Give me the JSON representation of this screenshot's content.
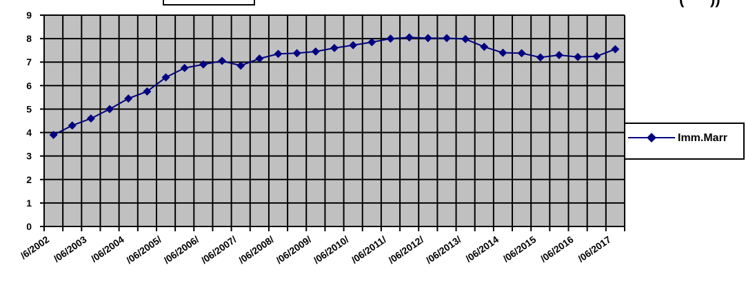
{
  "chart_data": {
    "type": "line",
    "title": "",
    "xlabel": "",
    "ylabel": "",
    "ylim": [
      0,
      9
    ],
    "yticks": [
      "0",
      "1",
      "2",
      "3",
      "4",
      "5",
      "6",
      "7",
      "8",
      "9"
    ],
    "grid": true,
    "legend_position": "right",
    "x_tick_labels": [
      "/6/2002",
      "/06/2003",
      "/06/2004",
      "/06/2005/",
      "/06/2006/",
      "/06/2007/",
      "/06/2008/",
      "/06/2009/",
      "/06/2010/",
      "/06/2011/",
      "/06/2012/",
      "/06/2013/",
      "/06/2014",
      "/06/2015",
      "/06/2016",
      "/06/2017"
    ],
    "series": [
      {
        "name": "Imm.Marr",
        "color": "#000080",
        "marker": "diamond",
        "values": [
          3.9,
          4.3,
          4.6,
          5.0,
          5.45,
          5.75,
          6.35,
          6.75,
          6.9,
          7.05,
          6.85,
          7.15,
          7.35,
          7.38,
          7.45,
          7.6,
          7.72,
          7.85,
          8.0,
          8.05,
          8.02,
          8.02,
          7.98,
          7.65,
          7.4,
          7.38,
          7.2,
          7.3,
          7.22,
          7.25,
          7.55
        ]
      }
    ]
  },
  "colors": {
    "plot_background": "#c0c0c0",
    "grid": "#000000",
    "series": "#000080"
  }
}
